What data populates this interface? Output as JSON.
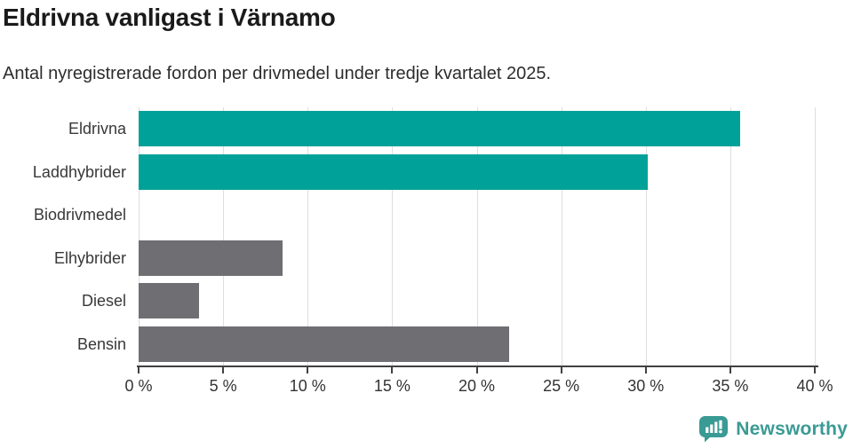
{
  "header": {
    "title": "Eldrivna vanligast i Värnamo",
    "subtitle": "Antal nyregistrerade fordon per drivmedel under tredje kvartalet 2025."
  },
  "chart_data": {
    "type": "bar",
    "orientation": "horizontal",
    "title": "Eldrivna vanligast i Värnamo",
    "subtitle": "Antal nyregistrerade fordon per drivmedel under tredje kvartalet 2025.",
    "categories": [
      "Eldrivna",
      "Laddhybrider",
      "Biodrivmedel",
      "Elhybrider",
      "Diesel",
      "Bensin"
    ],
    "values": [
      35.6,
      30.1,
      0,
      8.5,
      3.6,
      21.9
    ],
    "unit": "%",
    "xlim": [
      0,
      40
    ],
    "xticks": [
      0,
      5,
      10,
      15,
      20,
      25,
      30,
      35,
      40
    ],
    "xtick_suffix": " %",
    "grid": true,
    "legend": "none",
    "bar_colors": [
      "#00a199",
      "#00a199",
      "#00a199",
      "#6e6e73",
      "#6e6e73",
      "#6e6e73"
    ],
    "highlight_color": "#00a199",
    "default_bar_color": "#6e6e73",
    "gridline_color": "#dedede",
    "axis_color": "#414141",
    "label_color": "#383838"
  },
  "footer": {
    "logo_text": "Newsworthy",
    "logo_color": "#3a9a94",
    "logo_icon": "bar-chart-speech-bubble-icon"
  }
}
